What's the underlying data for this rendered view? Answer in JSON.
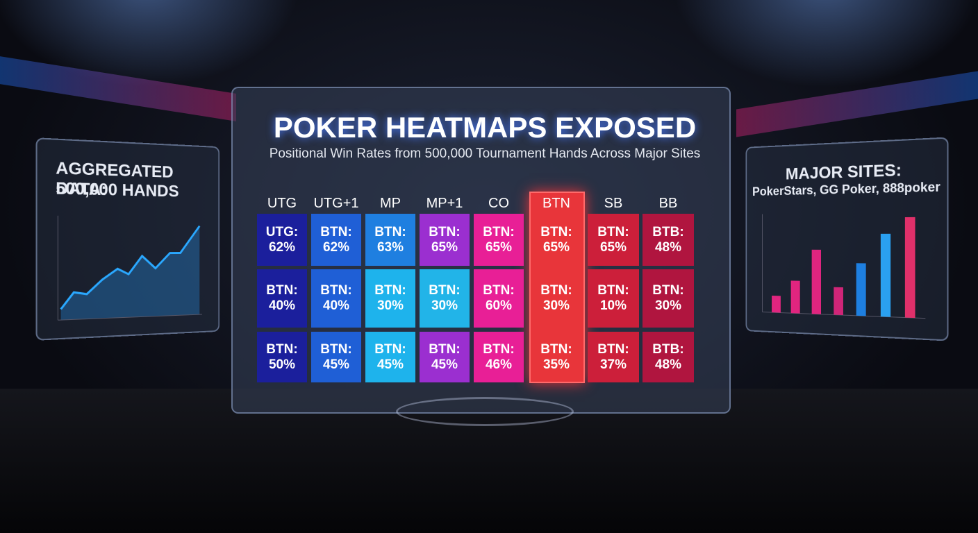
{
  "header": {
    "title": "POKER HEATMAPS EXPOSED",
    "subtitle": "Positional Win Rates from 500,000 Tournament Hands Across Major Sites"
  },
  "left_panel": {
    "title": "AGGREGATED DATA:",
    "subtitle": "500,000 HANDS"
  },
  "right_panel": {
    "title": "MAJOR SITES:",
    "subtitle": "PokerStars, GG Poker, 888poker"
  },
  "heatmap": {
    "highlight_column": 5,
    "columns": [
      {
        "header": "UTG",
        "cells": [
          {
            "label": "UTG:",
            "value": "62%",
            "color": "#1b1f9c"
          },
          {
            "label": "BTN:",
            "value": "40%",
            "color": "#1b1f9c"
          },
          {
            "label": "BTN:",
            "value": "50%",
            "color": "#1b1f9c"
          }
        ]
      },
      {
        "header": "UTG+1",
        "cells": [
          {
            "label": "BTN:",
            "value": "62%",
            "color": "#1f5fd6"
          },
          {
            "label": "BTN:",
            "value": "40%",
            "color": "#1f5fd6"
          },
          {
            "label": "BTN:",
            "value": "45%",
            "color": "#1f5fd6"
          }
        ]
      },
      {
        "header": "MP",
        "cells": [
          {
            "label": "BTN:",
            "value": "63%",
            "color": "#1f7fe0"
          },
          {
            "label": "BTN:",
            "value": "30%",
            "color": "#1eb3ec"
          },
          {
            "label": "BTN:",
            "value": "45%",
            "color": "#1eb3ec"
          }
        ]
      },
      {
        "header": "MP+1",
        "cells": [
          {
            "label": "BTN:",
            "value": "65%",
            "color": "#9b2fd0"
          },
          {
            "label": "BTN:",
            "value": "30%",
            "color": "#22b4e8"
          },
          {
            "label": "BTN:",
            "value": "45%",
            "color": "#9b2fd0"
          }
        ]
      },
      {
        "header": "CO",
        "cells": [
          {
            "label": "BTN:",
            "value": "65%",
            "color": "#e81f96"
          },
          {
            "label": "BTN:",
            "value": "60%",
            "color": "#e81f96"
          },
          {
            "label": "BTN:",
            "value": "46%",
            "color": "#e81f96"
          }
        ]
      },
      {
        "header": "BTN",
        "cells": [
          {
            "label": "BTN:",
            "value": "65%",
            "color": "#e8353a"
          },
          {
            "label": "BTN:",
            "value": "30%",
            "color": "#e8353a"
          },
          {
            "label": "BTN:",
            "value": "35%",
            "color": "#e8353a"
          }
        ]
      },
      {
        "header": "SB",
        "cells": [
          {
            "label": "BTN:",
            "value": "65%",
            "color": "#cc1f3a"
          },
          {
            "label": "BTN:",
            "value": "10%",
            "color": "#cc1f3a"
          },
          {
            "label": "BTN:",
            "value": "37%",
            "color": "#cc1f3a"
          }
        ]
      },
      {
        "header": "BB",
        "cells": [
          {
            "label": "BTB:",
            "value": "48%",
            "color": "#b0153f"
          },
          {
            "label": "BTN:",
            "value": "30%",
            "color": "#b0153f"
          },
          {
            "label": "BTB:",
            "value": "48%",
            "color": "#b0153f"
          }
        ]
      }
    ]
  }
}
